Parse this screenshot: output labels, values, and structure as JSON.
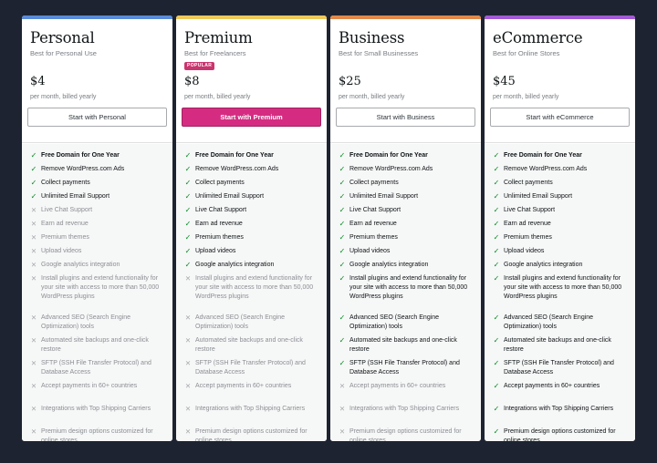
{
  "accent_colors": {
    "personal": "#5b8bd8",
    "premium": "#eec85a",
    "business": "#e2894a",
    "ecommerce": "#a35ad6",
    "cta_primary": "#d52c82",
    "included_icon": "#008a20",
    "excluded_icon": "#a7aaad"
  },
  "icons": {
    "included": "check-icon",
    "excluded": "cross-icon"
  },
  "plans": [
    {
      "name": "Personal",
      "tagline": "Best for Personal Use",
      "popular_badge": "",
      "price": "$4",
      "billing": "per month, billed yearly",
      "cta": "Start with Personal",
      "features": [
        {
          "label": "Free Domain for One Year",
          "included": true
        },
        {
          "label": "Remove WordPress.com Ads",
          "included": true
        },
        {
          "label": "Collect payments",
          "included": true
        },
        {
          "label": "Unlimited Email Support",
          "included": true
        },
        {
          "label": "Live Chat Support",
          "included": false
        },
        {
          "label": "Earn ad revenue",
          "included": false
        },
        {
          "label": "Premium themes",
          "included": false
        },
        {
          "label": "Upload videos",
          "included": false
        },
        {
          "label": "Google analytics integration",
          "included": false
        },
        {
          "label": "Install plugins and extend functionality for your site with access to more than 50,000 WordPress plugins",
          "included": false
        },
        {
          "label": "Advanced SEO (Search Engine Optimization) tools",
          "included": false
        },
        {
          "label": "Automated site backups and one-click restore",
          "included": false
        },
        {
          "label": "SFTP (SSH File Transfer Protocol) and Database Access",
          "included": false
        },
        {
          "label": "Accept payments in 60+ countries",
          "included": false
        },
        {
          "label": "Integrations with Top Shipping Carriers",
          "included": false
        },
        {
          "label": "Premium design options customized for online stores",
          "included": false
        }
      ]
    },
    {
      "name": "Premium",
      "tagline": "Best for Freelancers",
      "popular_badge": "POPULAR",
      "price": "$8",
      "billing": "per month, billed yearly",
      "cta": "Start with Premium",
      "features": [
        {
          "label": "Free Domain for One Year",
          "included": true
        },
        {
          "label": "Remove WordPress.com Ads",
          "included": true
        },
        {
          "label": "Collect payments",
          "included": true
        },
        {
          "label": "Unlimited Email Support",
          "included": true
        },
        {
          "label": "Live Chat Support",
          "included": true
        },
        {
          "label": "Earn ad revenue",
          "included": true
        },
        {
          "label": "Premium themes",
          "included": true
        },
        {
          "label": "Upload videos",
          "included": true
        },
        {
          "label": "Google analytics integration",
          "included": true
        },
        {
          "label": "Install plugins and extend functionality for your site with access to more than 50,000 WordPress plugins",
          "included": false
        },
        {
          "label": "Advanced SEO (Search Engine Optimization) tools",
          "included": false
        },
        {
          "label": "Automated site backups and one-click restore",
          "included": false
        },
        {
          "label": "SFTP (SSH File Transfer Protocol) and Database Access",
          "included": false
        },
        {
          "label": "Accept payments in 60+ countries",
          "included": false
        },
        {
          "label": "Integrations with Top Shipping Carriers",
          "included": false
        },
        {
          "label": "Premium design options customized for online stores",
          "included": false
        }
      ]
    },
    {
      "name": "Business",
      "tagline": "Best for Small Businesses",
      "popular_badge": "",
      "price": "$25",
      "billing": "per month, billed yearly",
      "cta": "Start with Business",
      "features": [
        {
          "label": "Free Domain for One Year",
          "included": true
        },
        {
          "label": "Remove WordPress.com Ads",
          "included": true
        },
        {
          "label": "Collect payments",
          "included": true
        },
        {
          "label": "Unlimited Email Support",
          "included": true
        },
        {
          "label": "Live Chat Support",
          "included": true
        },
        {
          "label": "Earn ad revenue",
          "included": true
        },
        {
          "label": "Premium themes",
          "included": true
        },
        {
          "label": "Upload videos",
          "included": true
        },
        {
          "label": "Google analytics integration",
          "included": true
        },
        {
          "label": "Install plugins and extend functionality for your site with access to more than 50,000 WordPress plugins",
          "included": true
        },
        {
          "label": "Advanced SEO (Search Engine Optimization) tools",
          "included": true
        },
        {
          "label": "Automated site backups and one-click restore",
          "included": true
        },
        {
          "label": "SFTP (SSH File Transfer Protocol) and Database Access",
          "included": true
        },
        {
          "label": "Accept payments in 60+ countries",
          "included": false
        },
        {
          "label": "Integrations with Top Shipping Carriers",
          "included": false
        },
        {
          "label": "Premium design options customized for online stores",
          "included": false
        }
      ]
    },
    {
      "name": "eCommerce",
      "tagline": "Best for Online Stores",
      "popular_badge": "",
      "price": "$45",
      "billing": "per month, billed yearly",
      "cta": "Start with eCommerce",
      "features": [
        {
          "label": "Free Domain for One Year",
          "included": true
        },
        {
          "label": "Remove WordPress.com Ads",
          "included": true
        },
        {
          "label": "Collect payments",
          "included": true
        },
        {
          "label": "Unlimited Email Support",
          "included": true
        },
        {
          "label": "Live Chat Support",
          "included": true
        },
        {
          "label": "Earn ad revenue",
          "included": true
        },
        {
          "label": "Premium themes",
          "included": true
        },
        {
          "label": "Upload videos",
          "included": true
        },
        {
          "label": "Google analytics integration",
          "included": true
        },
        {
          "label": "Install plugins and extend functionality for your site with access to more than 50,000 WordPress plugins",
          "included": true
        },
        {
          "label": "Advanced SEO (Search Engine Optimization) tools",
          "included": true
        },
        {
          "label": "Automated site backups and one-click restore",
          "included": true
        },
        {
          "label": "SFTP (SSH File Transfer Protocol) and Database Access",
          "included": true
        },
        {
          "label": "Accept payments in 60+ countries",
          "included": true
        },
        {
          "label": "Integrations with Top Shipping Carriers",
          "included": true
        },
        {
          "label": "Premium design options customized for online stores",
          "included": true
        }
      ]
    }
  ]
}
